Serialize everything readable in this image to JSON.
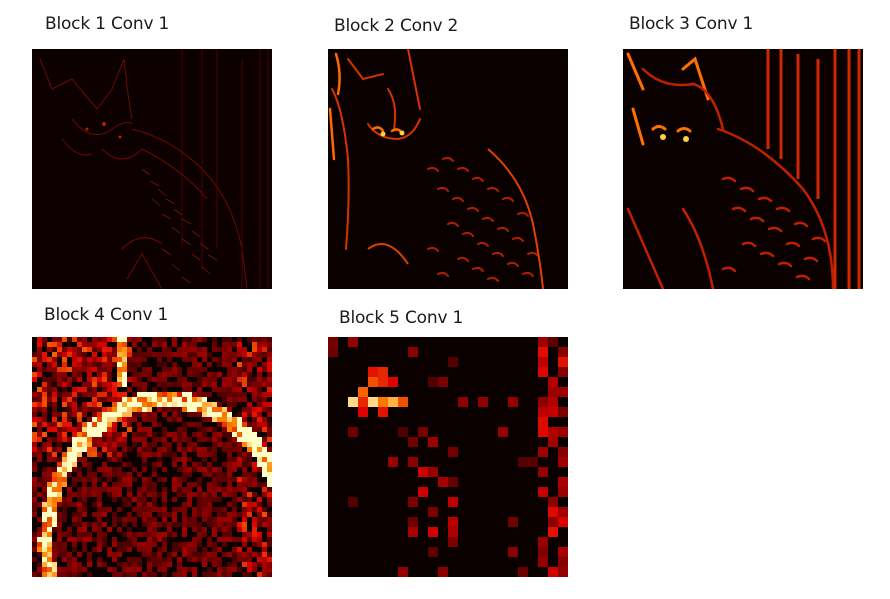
{
  "figure": {
    "panels": [
      {
        "title": "Block 1 Conv 1",
        "map_description": "sparse faint red edge response tracing a cat outline"
      },
      {
        "title": "Block 2 Conv 2",
        "map_description": "brighter red/orange edge response on cat fur and face"
      },
      {
        "title": "Block 3 Conv 1",
        "map_description": "strong red/orange edges with vertical stripes on the right"
      },
      {
        "title": "Block 4 Conv 1",
        "map_description": "coarse blocky orange-red activation following the cat contour"
      },
      {
        "title": "Block 5 Conv 1",
        "map_description": "very coarse grid; bright yellow-white hotspot near upper left"
      }
    ],
    "colormap": {
      "low": "#000000",
      "mid": "#cc0000",
      "high": "#ffff80"
    }
  }
}
